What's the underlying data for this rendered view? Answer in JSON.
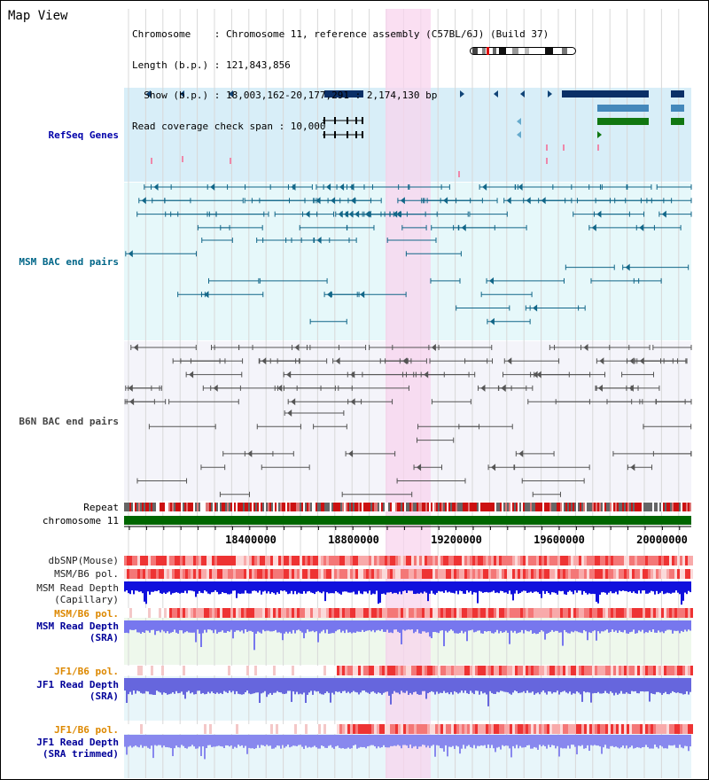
{
  "title": "Map View",
  "header": {
    "line1": "Chromosome    : Chromosome 11, reference assembly (C57BL/6J) (Build 37)",
    "line2": "Length (b.p.) : 121,843,856",
    "line3": "  Show (b.p.) : 18,003,162-20,177,291 : 2,174,130 bp",
    "line4": "Read coverage check span : 10,000"
  },
  "tracks": {
    "refseq": "RefSeq Genes",
    "msm_bac": "MSM BAC end pairs",
    "b6n_bac": "B6N BAC end pairs",
    "repeat": "Repeat",
    "chromosome": "chromosome 11",
    "dbsnp": "dbSNP(Mouse)",
    "msm_b6_pol_1": "MSM/B6 pol.",
    "msm_depth_cap_1": "MSM Read Depth",
    "msm_depth_cap_2": "(Capillary)",
    "msm_b6_pol_2": "MSM/B6 pol.",
    "msm_depth_sra_1": "MSM Read Depth",
    "msm_depth_sra_2": "(SRA)",
    "jf1_b6_pol_1": "JF1/B6 pol.",
    "jf1_depth_sra_1": "JF1 Read Depth",
    "jf1_depth_sra_2": "(SRA)",
    "jf1_b6_pol_2": "JF1/B6 pol.",
    "jf1_depth_trim_1": "JF1 Read Depth",
    "jf1_depth_trim_2": "(SRA trimmed)"
  },
  "axis": {
    "ticks": [
      "18400000",
      "18800000",
      "19200000",
      "19600000",
      "20000000"
    ]
  },
  "colors": {
    "refseq_label": "#0000aa",
    "msm_label": "#006688",
    "b6n_label": "#444444",
    "pol_label": "#dd8800",
    "depth_label": "#000099",
    "highlight": "#f8d8f0",
    "chromosome_bar": "#006600"
  }
}
